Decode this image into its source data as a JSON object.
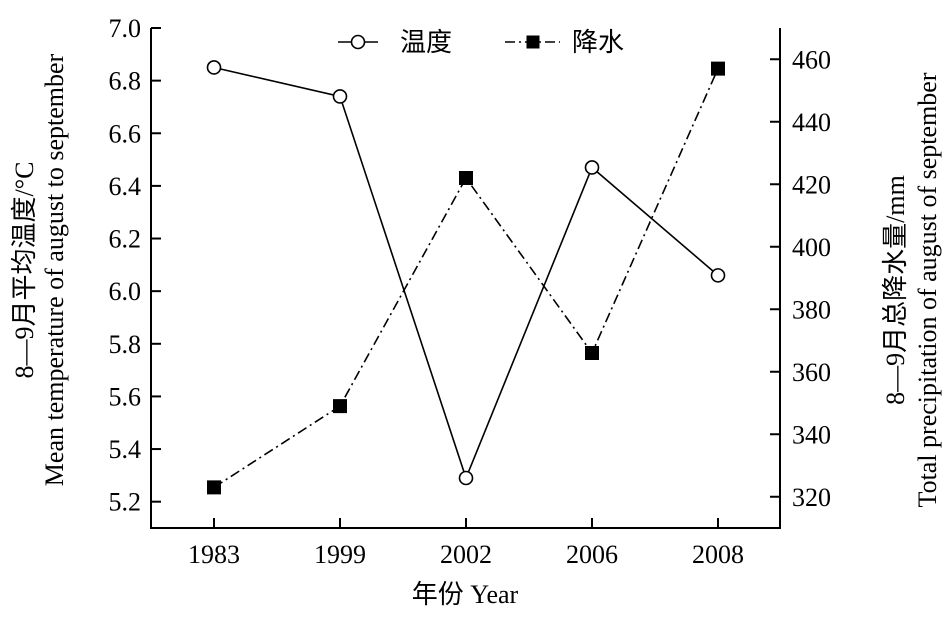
{
  "chart_data": {
    "type": "line",
    "categories": [
      "1983",
      "1999",
      "2002",
      "2006",
      "2008"
    ],
    "xlabel": "年份 Year",
    "ylabel_left": [
      "8—9月平均温度/°C",
      "Mean temperature of august to september"
    ],
    "ylabel_right": [
      "8—9月总降水量/mm",
      "Total precipitation of august of september"
    ],
    "y_left": {
      "min": 5.1,
      "max": 7.0,
      "ticks": [
        "5.2",
        "5.4",
        "5.6",
        "5.8",
        "6.0",
        "6.2",
        "6.4",
        "6.6",
        "6.8",
        "7.0"
      ]
    },
    "y_right": {
      "min": 310,
      "max": 470,
      "ticks": [
        "320",
        "340",
        "360",
        "380",
        "400",
        "420",
        "440",
        "460"
      ]
    },
    "legend_position": "top-center",
    "grid": false,
    "series": [
      {
        "name": "温度",
        "axis": "left",
        "style": "solid",
        "marker": "open-circle",
        "values": [
          6.85,
          6.74,
          5.29,
          6.47,
          6.06
        ]
      },
      {
        "name": "降水",
        "axis": "right",
        "style": "dash-dot",
        "marker": "filled-square",
        "values": [
          323,
          349,
          422,
          366,
          457
        ]
      }
    ]
  }
}
